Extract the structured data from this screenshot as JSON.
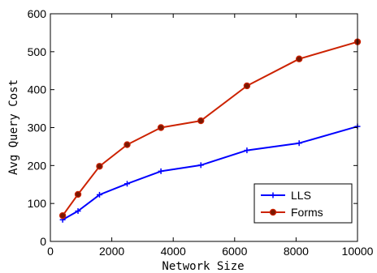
{
  "chart_data": {
    "type": "line",
    "xlabel": "Network Size",
    "ylabel": "Avg Query Cost",
    "xlim": [
      0,
      10000
    ],
    "ylim": [
      0,
      600
    ],
    "xticks": [
      0,
      2000,
      4000,
      6000,
      8000,
      10000
    ],
    "yticks": [
      0,
      100,
      200,
      300,
      400,
      500,
      600
    ],
    "x_tick_labels": [
      "0",
      "2000",
      "4000",
      "6000",
      "8000",
      "10000"
    ],
    "y_tick_labels": [
      "0",
      "100",
      "200",
      "300",
      "400",
      "500",
      "600"
    ],
    "grid": false,
    "legend_position": "bottom-right",
    "series": [
      {
        "name": "LLS",
        "color": "#0000ff",
        "marker": "plus",
        "x": [
          400,
          900,
          1600,
          2500,
          3600,
          4900,
          6400,
          8100,
          10000
        ],
        "y": [
          57,
          80,
          123,
          152,
          185,
          201,
          240,
          259,
          303
        ]
      },
      {
        "name": "Forms",
        "color": "#cc2200",
        "marker_fill": "#7a1800",
        "marker": "circle",
        "x": [
          400,
          900,
          1600,
          2500,
          3600,
          4900,
          6400,
          8100,
          10000
        ],
        "y": [
          68,
          124,
          198,
          255,
          300,
          318,
          410,
          481,
          526
        ]
      }
    ]
  }
}
